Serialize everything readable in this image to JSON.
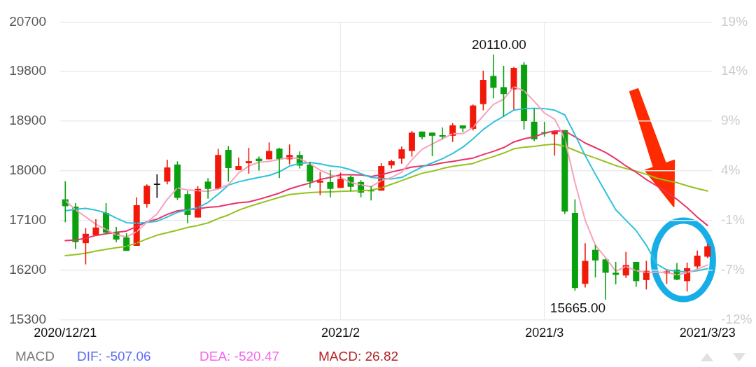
{
  "chart_data": {
    "type": "candlestick",
    "categories": [
      "2020/12/21",
      null,
      null,
      null,
      null,
      null,
      null,
      null,
      null,
      null,
      null,
      null,
      null,
      null,
      null,
      null,
      null,
      null,
      null,
      null,
      null,
      null,
      null,
      null,
      null,
      null,
      null,
      "2021/2",
      null,
      null,
      null,
      null,
      null,
      null,
      null,
      null,
      null,
      null,
      null,
      null,
      null,
      null,
      null,
      null,
      null,
      null,
      null,
      "2021/3",
      null,
      null,
      null,
      null,
      null,
      null,
      null,
      null,
      null,
      null,
      null,
      null,
      null,
      null,
      null,
      "2021/3/23"
    ],
    "ohlc": [
      [
        17483,
        17812,
        17066,
        17358
      ],
      [
        17350,
        17414,
        16582,
        16707
      ],
      [
        16688,
        16960,
        16302,
        16858
      ],
      [
        16832,
        17123,
        16832,
        16972
      ],
      [
        17236,
        17414,
        16858,
        16878
      ],
      [
        16896,
        16983,
        16707,
        16753
      ],
      [
        16790,
        16870,
        16548,
        16548
      ],
      [
        16639,
        17520,
        16639,
        17377
      ],
      [
        17400,
        17755,
        17332,
        17729
      ],
      [
        17766,
        17937,
        17509,
        17766
      ],
      [
        17804,
        18201,
        17755,
        18061
      ],
      [
        18114,
        18171,
        17471,
        17509
      ],
      [
        17577,
        17633,
        17048,
        17199
      ],
      [
        17153,
        17721,
        17153,
        17672
      ],
      [
        17804,
        17868,
        17494,
        17672
      ],
      [
        17672,
        18398,
        17672,
        18288
      ],
      [
        18379,
        18447,
        17804,
        18050
      ],
      [
        18013,
        18240,
        18013,
        18087
      ],
      [
        18137,
        18418,
        17948,
        18175
      ],
      [
        18220,
        18258,
        18005,
        18175
      ],
      [
        18209,
        18515,
        18209,
        18360
      ],
      [
        18402,
        18417,
        17868,
        18209
      ],
      [
        18209,
        18478,
        18118,
        18288
      ],
      [
        18288,
        18352,
        18042,
        18095
      ],
      [
        18114,
        18164,
        17690,
        17804
      ],
      [
        17786,
        17982,
        17559,
        17823
      ],
      [
        17797,
        18013,
        17520,
        17672
      ],
      [
        17690,
        17967,
        17690,
        17854
      ],
      [
        17888,
        17917,
        17626,
        17710
      ],
      [
        17797,
        17831,
        17520,
        17604
      ],
      [
        17653,
        17721,
        17463,
        17627
      ],
      [
        17641,
        18137,
        17641,
        18087
      ],
      [
        18099,
        18201,
        18042,
        18175
      ],
      [
        18220,
        18440,
        18129,
        18390
      ],
      [
        18360,
        18723,
        18258,
        18693
      ],
      [
        18712,
        18712,
        18572,
        18610
      ],
      [
        18693,
        18693,
        18266,
        18636
      ],
      [
        18647,
        18788,
        18580,
        18618
      ],
      [
        18636,
        18864,
        18523,
        18825
      ],
      [
        18825,
        18825,
        18705,
        18768
      ],
      [
        18762,
        19204,
        18731,
        19185
      ],
      [
        19211,
        19817,
        19098,
        19650
      ],
      [
        19722,
        20110,
        19318,
        19506
      ],
      [
        19518,
        19906,
        18988,
        19393
      ],
      [
        19477,
        19885,
        19112,
        19866
      ],
      [
        19923,
        19971,
        18750,
        18901
      ],
      [
        18890,
        19128,
        18538,
        18572
      ],
      [
        18700,
        18890,
        18620,
        18680
      ],
      [
        18663,
        18712,
        18277,
        18712
      ],
      [
        18738,
        18738,
        17217,
        17263
      ],
      [
        17236,
        17483,
        15825,
        15874
      ],
      [
        15950,
        16688,
        15882,
        16366
      ],
      [
        16567,
        16651,
        16064,
        16374
      ],
      [
        16393,
        16404,
        15665,
        16151
      ],
      [
        16151,
        16348,
        15939,
        16113
      ],
      [
        16101,
        16529,
        16056,
        16291
      ],
      [
        16348,
        16348,
        15894,
        15999
      ],
      [
        16018,
        16367,
        15848,
        16185
      ],
      null,
      [
        16140,
        16208,
        15950,
        16177
      ],
      [
        16208,
        16328,
        16018,
        16026
      ],
      [
        15999,
        16336,
        15811,
        16234
      ],
      [
        16265,
        16555,
        16226,
        16461
      ],
      [
        16442,
        16680,
        16416,
        16631
      ]
    ],
    "colors": [
      "#0aa00f",
      "#0aa00f",
      "#f0190a",
      "#f0190a",
      "#0aa00f",
      "#0aa00f",
      "#0aa00f",
      "#f0190a",
      "#f0190a",
      "#000000",
      "#f0190a",
      "#0aa00f",
      "#0aa00f",
      "#f0190a",
      "#0aa00f",
      "#f0190a",
      "#0aa00f",
      "#f0190a",
      "#f0190a",
      "#0aa00f",
      "#f0190a",
      "#0aa00f",
      "#f0190a",
      "#0aa00f",
      "#0aa00f",
      "#f0190a",
      "#0aa00f",
      "#f0190a",
      "#0aa00f",
      "#0aa00f",
      "#0aa00f",
      "#f0190a",
      "#f0190a",
      "#f0190a",
      "#f0190a",
      "#0aa00f",
      "#0aa00f",
      "#0aa00f",
      "#f0190a",
      "#0aa00f",
      "#f0190a",
      "#f0190a",
      "#0aa00f",
      "#0aa00f",
      "#f0190a",
      "#0aa00f",
      "#0aa00f",
      "#0aa00f",
      "#f0190a",
      "#0aa00f",
      "#0aa00f",
      "#f0190a",
      "#0aa00f",
      "#0aa00f",
      "#0aa00f",
      "#f0190a",
      "#0aa00f",
      "#f0190a",
      null,
      "#f0190a",
      "#0aa00f",
      "#f0190a",
      "#f0190a",
      "#f0190a"
    ],
    "series": [
      {
        "type": "line",
        "color": "#f5a3bb",
        "values": [
          17463,
          17293,
          17165,
          17029,
          16938,
          16839,
          16802,
          16896,
          17066,
          17218,
          17483,
          17690,
          17653,
          17641,
          17627,
          17672,
          17750,
          17960,
          18087,
          18156,
          18171,
          18209,
          18240,
          18220,
          18126,
          18013,
          17929,
          17880,
          17786,
          17747,
          17710,
          17823,
          17880,
          17974,
          18201,
          18391,
          18485,
          18580,
          18674,
          18674,
          18788,
          18996,
          19204,
          19299,
          19526,
          19450,
          19261,
          19050,
          18938,
          18580,
          17786,
          17105,
          16651,
          16424,
          16177,
          16265,
          16189,
          16158,
          16158,
          16158,
          16113,
          16151,
          16215,
          16291
        ]
      },
      {
        "type": "line",
        "color": "#2ec2dc",
        "values": [
          17275,
          17304,
          17320,
          17286,
          17236,
          17142,
          17059,
          17048,
          17066,
          17085,
          17161,
          17248,
          17286,
          17332,
          17426,
          17577,
          17740,
          17800,
          17842,
          17880,
          17917,
          17982,
          18087,
          18132,
          18152,
          18126,
          18087,
          18069,
          18020,
          17948,
          17880,
          17861,
          17854,
          17880,
          17974,
          18069,
          18145,
          18220,
          18315,
          18429,
          18580,
          18750,
          18882,
          18989,
          19102,
          19128,
          19132,
          19128,
          19100,
          19015,
          18655,
          18277,
          17937,
          17615,
          17293,
          17105,
          16915,
          16651,
          16310,
          16203,
          16177,
          16166,
          16189,
          16226
        ]
      },
      {
        "type": "line",
        "color": "#e8336b",
        "values": [
          16733,
          16745,
          16775,
          16828,
          16858,
          16884,
          16907,
          16991,
          17074,
          17123,
          17210,
          17275,
          17293,
          17312,
          17338,
          17350,
          17388,
          17420,
          17437,
          17483,
          17539,
          17596,
          17672,
          17729,
          17778,
          17842,
          17880,
          17929,
          17929,
          17925,
          17898,
          17929,
          17978,
          18020,
          18069,
          18088,
          18107,
          18145,
          18171,
          18201,
          18232,
          18296,
          18353,
          18421,
          18523,
          18580,
          18618,
          18684,
          18723,
          18723,
          18618,
          18504,
          18421,
          18334,
          18220,
          18088,
          17974,
          17842,
          17729,
          17615,
          17483,
          17332,
          17161,
          17009
        ]
      },
      {
        "type": "line",
        "color": "#96c11f",
        "values": [
          16461,
          16480,
          16506,
          16544,
          16575,
          16605,
          16631,
          16688,
          16764,
          16832,
          16878,
          16923,
          16972,
          17009,
          17055,
          17134,
          17199,
          17285,
          17350,
          17407,
          17463,
          17520,
          17570,
          17588,
          17604,
          17615,
          17619,
          17627,
          17633,
          17641,
          17649,
          17690,
          17757,
          17823,
          17891,
          17956,
          17993,
          18042,
          18080,
          18107,
          18133,
          18201,
          18258,
          18322,
          18398,
          18429,
          18444,
          18468,
          18485,
          18447,
          18371,
          18296,
          18232,
          18164,
          18095,
          18042,
          17993,
          17937,
          17868,
          17823,
          17786,
          17729,
          17679,
          17633
        ]
      }
    ],
    "ylim": [
      15300,
      20700
    ],
    "yticks": [
      15300,
      16200,
      17100,
      18000,
      18900,
      19800,
      20700
    ],
    "y2lim": [
      -11.76,
      19.38
    ],
    "y2ticks": [
      {
        "value": -11.76,
        "label": "-12%"
      },
      {
        "value": -6.57,
        "label": "-7%"
      },
      {
        "value": -1.38,
        "label": "-1%"
      },
      {
        "value": 3.81,
        "label": "4%"
      },
      {
        "value": 9.0,
        "label": "9%"
      },
      {
        "value": 14.19,
        "label": "14%"
      },
      {
        "value": 19.38,
        "label": "19%"
      }
    ],
    "grid": true,
    "marker": "none",
    "line_style": "solid",
    "annotations": [
      "20110.00",
      "15665.00",
      "MACD",
      "DIF: -507.06",
      "DEA: -520.47",
      "MACD: 26.82"
    ]
  }
}
